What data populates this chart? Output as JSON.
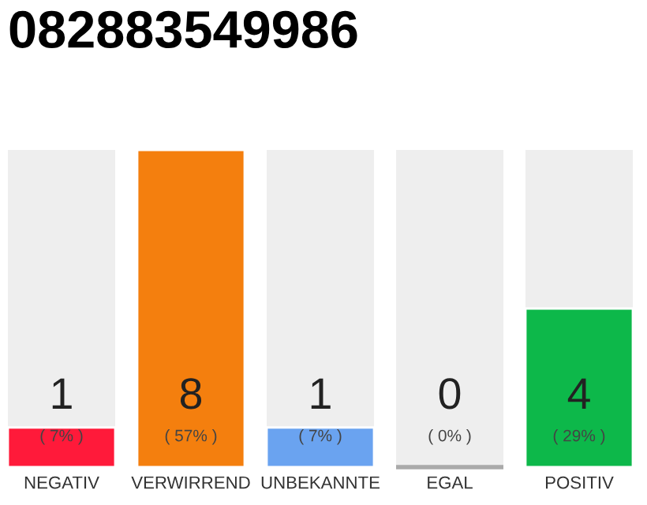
{
  "chart_data": {
    "type": "bar",
    "title": "082883549986",
    "categories": [
      "NEGATIV",
      "VERWIRREND",
      "UNBEKANNTE",
      "EGAL",
      "POSITIV"
    ],
    "values": [
      1,
      8,
      1,
      0,
      4
    ],
    "colors": [
      "#ff1a3a",
      "#f47f0e",
      "#6aa3f0",
      "#aaaaaa",
      "#0db84a"
    ],
    "ylim": [
      0,
      8
    ],
    "value_labels": [
      "1\n( 7% )",
      "8\n( 57% )",
      "1\n( 7% )",
      "0\n( 0% )",
      "4\n( 29% )"
    ]
  }
}
